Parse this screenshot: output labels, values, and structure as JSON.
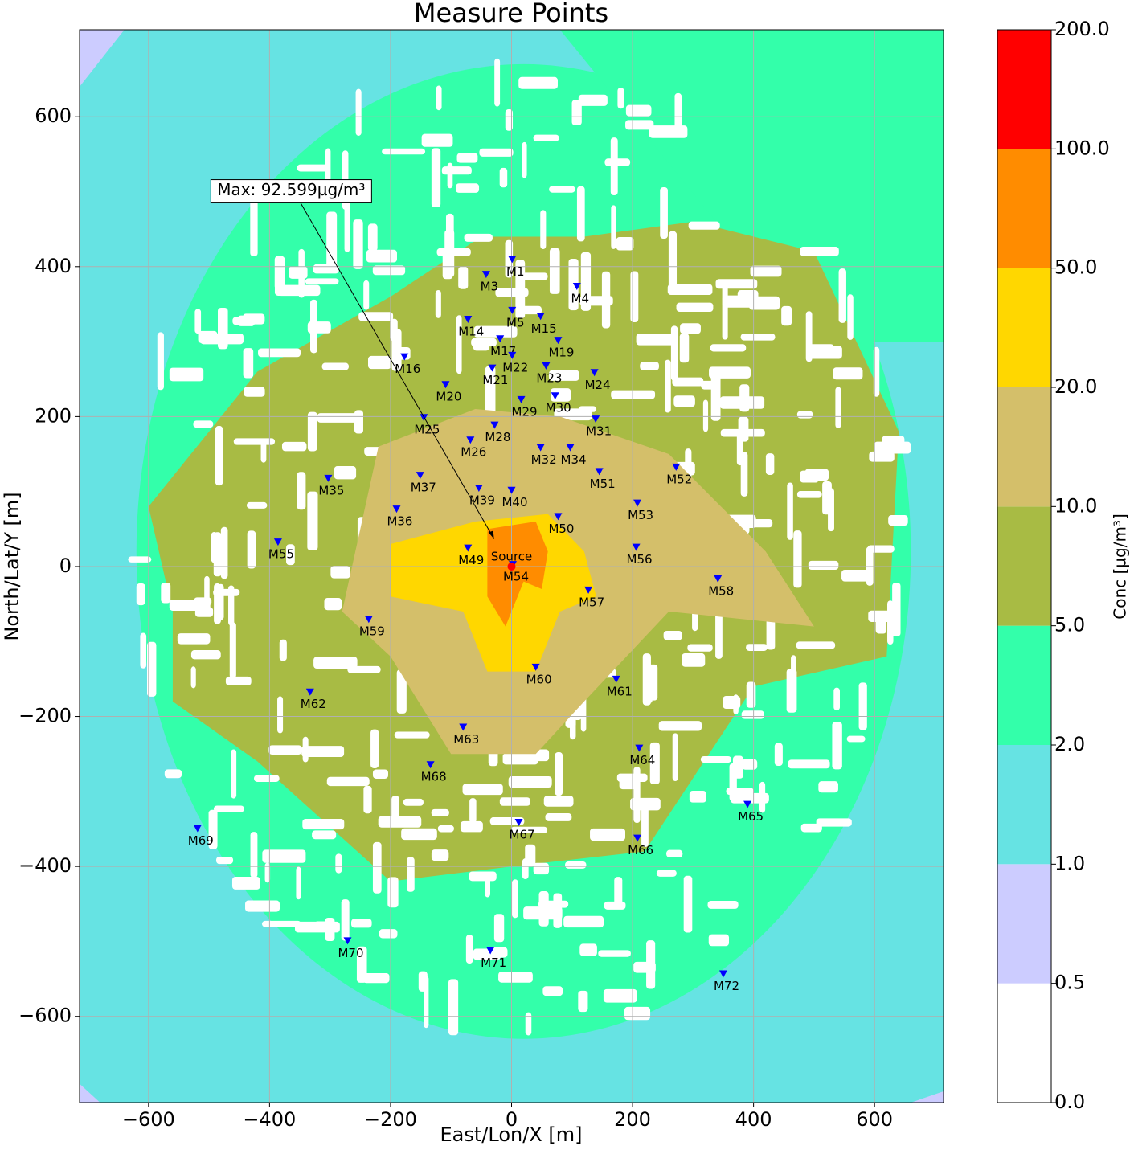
{
  "chart_data": {
    "type": "contour",
    "title": "Measure Points",
    "xlabel": "East/Lon/X [m]",
    "ylabel": "North/Lat/Y [m]",
    "xlim": [
      -714,
      714
    ],
    "ylim": [
      -715,
      716
    ],
    "xticks": [
      {
        "value": -600,
        "label": "−600"
      },
      {
        "value": -400,
        "label": "−400"
      },
      {
        "value": -200,
        "label": "−200"
      },
      0,
      200,
      400,
      600
    ],
    "yticks": [
      {
        "value": -600,
        "label": "−600"
      },
      {
        "value": -400,
        "label": "−400"
      },
      {
        "value": -200,
        "label": "−200"
      },
      0,
      200,
      400,
      600
    ],
    "grid": true,
    "colorbar": {
      "label": "Conc [µg/m³]",
      "levels": [
        {
          "value": 0,
          "label": "0.0"
        },
        {
          "value": 0.5,
          "label": "0.5"
        },
        {
          "value": 1,
          "label": "1.0"
        },
        {
          "value": 2,
          "label": "2.0"
        },
        {
          "value": 5,
          "label": "5.0"
        },
        {
          "value": 10,
          "label": "10.0"
        },
        {
          "value": 20,
          "label": "20.0"
        },
        {
          "value": 50,
          "label": "50.0"
        },
        {
          "value": 100,
          "label": "100.0"
        },
        {
          "value": 200,
          "label": "200.0"
        }
      ],
      "colors": [
        "#ffffff",
        "#ccccff",
        "#66e3e3",
        "#33ffaa",
        "#a8bb44",
        "#d4bf6a",
        "#ffd700",
        "#ff8c00",
        "#ff0000"
      ]
    },
    "point_color": "#0000ff",
    "points": [
      {
        "name": "M1",
        "x": 1,
        "y": 409
      },
      {
        "name": "M3",
        "x": -42,
        "y": 389
      },
      {
        "name": "M4",
        "x": 108,
        "y": 373
      },
      {
        "name": "M5",
        "x": 1,
        "y": 341
      },
      {
        "name": "M15",
        "x": 48,
        "y": 333
      },
      {
        "name": "M14",
        "x": -72,
        "y": 329
      },
      {
        "name": "M17",
        "x": -19,
        "y": 303
      },
      {
        "name": "M19",
        "x": 77,
        "y": 301
      },
      {
        "name": "M16",
        "x": -177,
        "y": 279
      },
      {
        "name": "M22",
        "x": 1,
        "y": 281
      },
      {
        "name": "M21",
        "x": -32,
        "y": 264
      },
      {
        "name": "M23",
        "x": 57,
        "y": 267
      },
      {
        "name": "M24",
        "x": 137,
        "y": 258
      },
      {
        "name": "M20",
        "x": -109,
        "y": 242
      },
      {
        "name": "M29",
        "x": 16,
        "y": 222
      },
      {
        "name": "M30",
        "x": 72,
        "y": 227
      },
      {
        "name": "M25",
        "x": -145,
        "y": 198
      },
      {
        "name": "M31",
        "x": 139,
        "y": 196
      },
      {
        "name": "M28",
        "x": -28,
        "y": 188
      },
      {
        "name": "M26",
        "x": -68,
        "y": 168
      },
      {
        "name": "M32",
        "x": 48,
        "y": 158
      },
      {
        "name": "M34",
        "x": 97,
        "y": 158
      },
      {
        "name": "M51",
        "x": 145,
        "y": 126
      },
      {
        "name": "M52",
        "x": 272,
        "y": 132
      },
      {
        "name": "M35",
        "x": -303,
        "y": 117
      },
      {
        "name": "M37",
        "x": -151,
        "y": 121
      },
      {
        "name": "M39",
        "x": -54,
        "y": 104
      },
      {
        "name": "M40",
        "x": 0,
        "y": 101
      },
      {
        "name": "M53",
        "x": 208,
        "y": 84
      },
      {
        "name": "M36",
        "x": -190,
        "y": 76
      },
      {
        "name": "M50",
        "x": 77,
        "y": 66
      },
      {
        "name": "M55",
        "x": -386,
        "y": 32
      },
      {
        "name": "M49",
        "x": -72,
        "y": 24
      },
      {
        "name": "M56",
        "x": 206,
        "y": 25
      },
      {
        "name": "M54",
        "x": 2,
        "y": 2
      },
      {
        "name": "M58",
        "x": 341,
        "y": -17
      },
      {
        "name": "M57",
        "x": 127,
        "y": -32
      },
      {
        "name": "M59",
        "x": -236,
        "y": -71
      },
      {
        "name": "M60",
        "x": 40,
        "y": -135
      },
      {
        "name": "M61",
        "x": 173,
        "y": -151
      },
      {
        "name": "M62",
        "x": -333,
        "y": -168
      },
      {
        "name": "M63",
        "x": -80,
        "y": -215
      },
      {
        "name": "M64",
        "x": 211,
        "y": -243
      },
      {
        "name": "M68",
        "x": -134,
        "y": -265
      },
      {
        "name": "M65",
        "x": 390,
        "y": -318
      },
      {
        "name": "M67",
        "x": 12,
        "y": -342
      },
      {
        "name": "M69",
        "x": -519,
        "y": -350
      },
      {
        "name": "M66",
        "x": 208,
        "y": -363
      },
      {
        "name": "M70",
        "x": -271,
        "y": -500
      },
      {
        "name": "M71",
        "x": -35,
        "y": -513
      },
      {
        "name": "M72",
        "x": 350,
        "y": -544
      }
    ],
    "source": {
      "label": "Source",
      "x": 0,
      "y": 0,
      "color": "#ff0000"
    },
    "annotation": {
      "text": "Max: 92.599µg/m³",
      "x": -497,
      "y": 501,
      "arrow_x": -29,
      "arrow_y": 37
    }
  }
}
